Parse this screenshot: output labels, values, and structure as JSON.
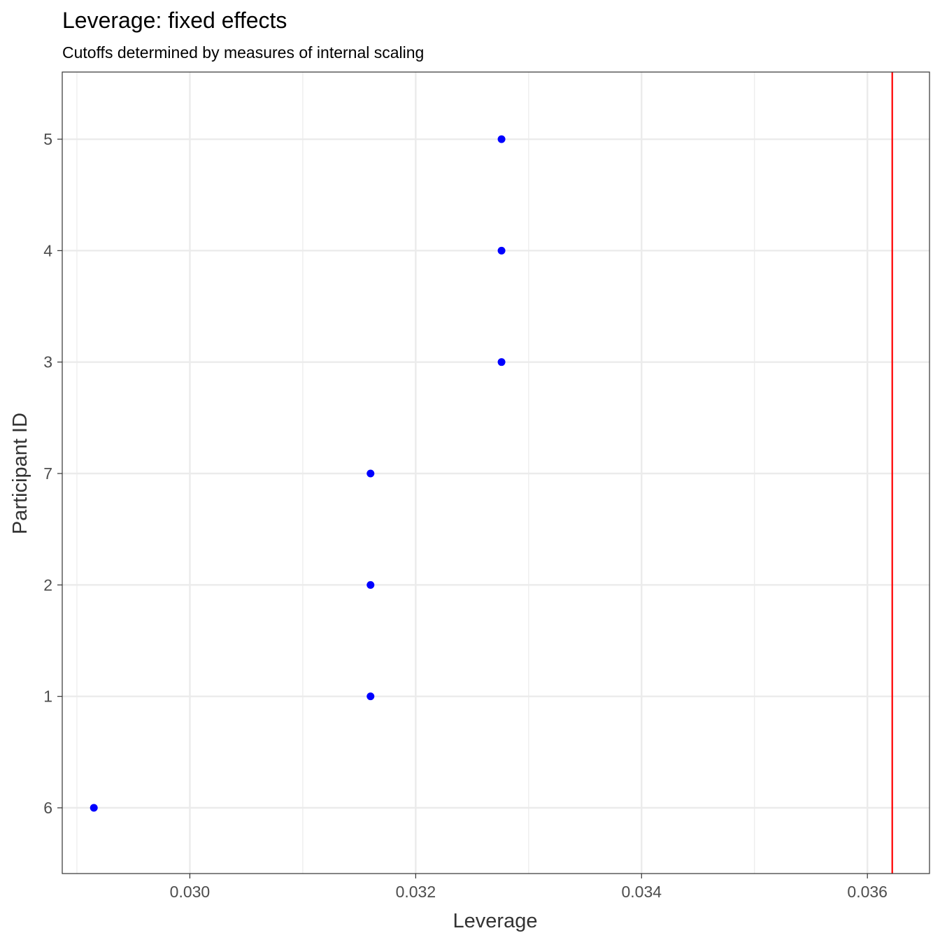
{
  "chart_data": {
    "type": "scatter",
    "title": "Leverage: fixed effects",
    "subtitle": "Cutoffs determined by measures of internal scaling",
    "xlabel": "Leverage",
    "ylabel": "Participant ID",
    "xlim": [
      0.02887,
      0.03655
    ],
    "x_ticks": [
      0.03,
      0.032,
      0.034,
      0.036
    ],
    "x_tick_labels": [
      "0.030",
      "0.032",
      "0.034",
      "0.036"
    ],
    "y_categories": [
      "6",
      "1",
      "2",
      "7",
      "3",
      "4",
      "5"
    ],
    "points": [
      {
        "id": "6",
        "x": 0.02915
      },
      {
        "id": "1",
        "x": 0.0316
      },
      {
        "id": "2",
        "x": 0.0316
      },
      {
        "id": "7",
        "x": 0.0316
      },
      {
        "id": "3",
        "x": 0.03276
      },
      {
        "id": "4",
        "x": 0.03276
      },
      {
        "id": "5",
        "x": 0.03276
      }
    ],
    "cutoff": 0.03622,
    "grid": true,
    "colors": {
      "points": "#0000ff",
      "cutoff": "#ff0000",
      "grid": "#ebebeb",
      "panel_border": "#333333"
    }
  }
}
